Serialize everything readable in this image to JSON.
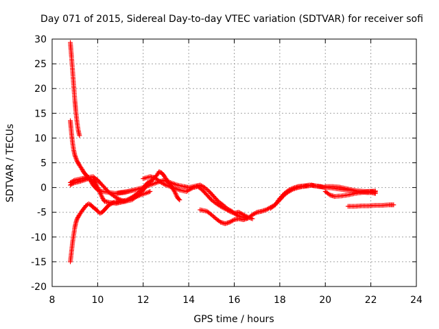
{
  "chart_data": {
    "type": "scatter",
    "title": "Day 071 of 2015, Sidereal Day-to-day VTEC variation (SDTVAR) for receiver sofi",
    "xlabel": "GPS time / hours",
    "ylabel": "SDTVAR / TECUs",
    "xlim": [
      8,
      24
    ],
    "ylim": [
      -20,
      30
    ],
    "xticks": [
      8,
      10,
      12,
      14,
      16,
      18,
      20,
      22,
      24
    ],
    "yticks": [
      -20,
      -15,
      -10,
      -5,
      0,
      5,
      10,
      15,
      20,
      25,
      30
    ],
    "xtick_labels": [
      "8",
      "10",
      "12",
      "14",
      "16",
      "18",
      "20",
      "22",
      "24"
    ],
    "ytick_labels": [
      "-20",
      "-15",
      "-10",
      "-5",
      "0",
      "5",
      "10",
      "15",
      "20",
      "25",
      "30"
    ],
    "grid": true,
    "marker": "+",
    "color": "#ff0000",
    "series": [
      {
        "name": "arc-high-start",
        "points": [
          [
            8.8,
            29.3
          ],
          [
            8.85,
            26.5
          ],
          [
            8.9,
            23.5
          ],
          [
            8.95,
            20.5
          ],
          [
            9.0,
            17.5
          ],
          [
            9.05,
            15.0
          ],
          [
            9.1,
            13.0
          ],
          [
            9.15,
            11.5
          ],
          [
            9.2,
            10.5
          ]
        ]
      },
      {
        "name": "arc-decay-to-zero",
        "points": [
          [
            8.8,
            13.5
          ],
          [
            8.85,
            11
          ],
          [
            8.9,
            9
          ],
          [
            8.95,
            7.5
          ],
          [
            9.0,
            6.5
          ],
          [
            9.1,
            5.3
          ],
          [
            9.2,
            4.5
          ],
          [
            9.3,
            3.8
          ],
          [
            9.4,
            3.0
          ],
          [
            9.5,
            2.5
          ],
          [
            9.6,
            2.0
          ],
          [
            9.7,
            1.3
          ],
          [
            9.8,
            0.5
          ],
          [
            9.9,
            0.0
          ],
          [
            10.0,
            -0.5
          ],
          [
            10.2,
            -0.8
          ],
          [
            10.5,
            -1.0
          ],
          [
            10.8,
            -1.2
          ],
          [
            11.0,
            -1.0
          ],
          [
            11.3,
            -0.8
          ],
          [
            11.6,
            -0.5
          ]
        ]
      },
      {
        "name": "arc-rising-from-minus15",
        "points": [
          [
            8.8,
            -15
          ],
          [
            8.85,
            -13
          ],
          [
            8.9,
            -11
          ],
          [
            8.95,
            -9.5
          ],
          [
            9.0,
            -8
          ],
          [
            9.05,
            -7
          ],
          [
            9.1,
            -6.3
          ],
          [
            9.2,
            -5.5
          ],
          [
            9.3,
            -4.8
          ],
          [
            9.4,
            -4.2
          ],
          [
            9.5,
            -3.6
          ],
          [
            9.6,
            -3.3
          ],
          [
            9.7,
            -3.5
          ],
          [
            9.8,
            -4.0
          ],
          [
            9.9,
            -4.3
          ],
          [
            10.0,
            -4.8
          ],
          [
            10.1,
            -5.2
          ],
          [
            10.2,
            -5.0
          ],
          [
            10.3,
            -4.5
          ],
          [
            10.4,
            -4.0
          ],
          [
            10.5,
            -3.5
          ],
          [
            10.7,
            -3.0
          ],
          [
            11.0,
            -2.8
          ],
          [
            11.3,
            -2.5
          ],
          [
            11.6,
            -2.0
          ],
          [
            11.9,
            -1.5
          ],
          [
            12.2,
            -1.0
          ],
          [
            12.3,
            -0.8
          ]
        ]
      },
      {
        "name": "arc-near-zero-low",
        "points": [
          [
            8.8,
            0.5
          ],
          [
            8.9,
            0.8
          ],
          [
            9.0,
            1.0
          ],
          [
            9.2,
            1.2
          ],
          [
            9.4,
            1.5
          ],
          [
            9.6,
            1.8
          ],
          [
            9.8,
            1.5
          ],
          [
            9.9,
            1.0
          ],
          [
            10.0,
            0.0
          ],
          [
            10.1,
            -1.0
          ],
          [
            10.2,
            -2.0
          ],
          [
            10.3,
            -2.8
          ],
          [
            10.5,
            -3.0
          ],
          [
            10.8,
            -3.2
          ],
          [
            11.0,
            -3.0
          ],
          [
            11.2,
            -2.8
          ],
          [
            11.5,
            -2.0
          ],
          [
            11.8,
            -1.0
          ],
          [
            12.0,
            0.0
          ],
          [
            12.2,
            1.0
          ],
          [
            12.4,
            1.5
          ]
        ]
      },
      {
        "name": "arc-mid-morning",
        "points": [
          [
            8.8,
            1.0
          ],
          [
            9.0,
            1.5
          ],
          [
            9.3,
            1.8
          ],
          [
            9.5,
            2.0
          ],
          [
            9.8,
            2.2
          ],
          [
            10.0,
            1.5
          ],
          [
            10.2,
            0.5
          ],
          [
            10.5,
            -1.0
          ],
          [
            10.8,
            -2.0
          ],
          [
            11.0,
            -2.5
          ],
          [
            11.2,
            -2.8
          ],
          [
            11.5,
            -2.5
          ],
          [
            11.8,
            -1.5
          ],
          [
            12.0,
            -0.5
          ],
          [
            12.2,
            0.5
          ],
          [
            12.4,
            1.5
          ],
          [
            12.6,
            2.5
          ],
          [
            12.7,
            3.2
          ],
          [
            12.8,
            3.0
          ],
          [
            12.9,
            2.5
          ],
          [
            13.0,
            1.8
          ],
          [
            13.2,
            0.5
          ],
          [
            13.4,
            -1.0
          ],
          [
            13.5,
            -2.0
          ],
          [
            13.6,
            -2.5
          ]
        ]
      },
      {
        "name": "arc-late-morning",
        "points": [
          [
            10.8,
            -1.2
          ],
          [
            11.2,
            -1.0
          ],
          [
            11.6,
            -0.5
          ],
          [
            12.0,
            0.0
          ],
          [
            12.3,
            0.5
          ],
          [
            12.6,
            1.0
          ],
          [
            12.9,
            1.5
          ],
          [
            13.2,
            1.0
          ],
          [
            13.5,
            0.5
          ],
          [
            13.8,
            0.2
          ],
          [
            14.0,
            0.0
          ],
          [
            14.3,
            0.3
          ],
          [
            14.5,
            0.5
          ],
          [
            14.7,
            0.0
          ],
          [
            14.9,
            -0.8
          ],
          [
            15.1,
            -1.8
          ],
          [
            15.3,
            -2.8
          ],
          [
            15.5,
            -3.5
          ],
          [
            15.7,
            -4.3
          ],
          [
            15.9,
            -4.8
          ],
          [
            16.0,
            -5.2
          ],
          [
            16.2,
            -5.0
          ],
          [
            16.4,
            -5.5
          ],
          [
            16.6,
            -6.0
          ],
          [
            16.8,
            -6.3
          ]
        ]
      },
      {
        "name": "arc-noon",
        "points": [
          [
            12.0,
            1.8
          ],
          [
            12.3,
            2.2
          ],
          [
            12.5,
            2.0
          ],
          [
            12.8,
            1.0
          ],
          [
            13.0,
            0.5
          ],
          [
            13.3,
            0.0
          ],
          [
            13.6,
            -0.5
          ],
          [
            13.9,
            -0.8
          ],
          [
            14.0,
            -0.5
          ],
          [
            14.2,
            0.0
          ],
          [
            14.4,
            0.2
          ],
          [
            14.6,
            -0.5
          ],
          [
            14.8,
            -1.5
          ],
          [
            15.0,
            -2.5
          ],
          [
            15.2,
            -3.2
          ],
          [
            15.4,
            -3.8
          ],
          [
            15.6,
            -4.3
          ],
          [
            15.8,
            -4.8
          ],
          [
            16.0,
            -5.2
          ],
          [
            16.2,
            -5.8
          ],
          [
            16.4,
            -6.0
          ],
          [
            16.6,
            -6.2
          ]
        ]
      },
      {
        "name": "arc-afternoon-dip",
        "points": [
          [
            14.5,
            -4.5
          ],
          [
            14.8,
            -4.8
          ],
          [
            15.0,
            -5.5
          ],
          [
            15.2,
            -6.3
          ],
          [
            15.4,
            -7.0
          ],
          [
            15.6,
            -7.3
          ],
          [
            15.8,
            -7.0
          ],
          [
            16.0,
            -6.5
          ],
          [
            16.2,
            -6.3
          ],
          [
            16.4,
            -6.5
          ],
          [
            16.6,
            -6.2
          ],
          [
            16.8,
            -5.5
          ],
          [
            17.0,
            -5.0
          ],
          [
            17.2,
            -4.8
          ],
          [
            17.4,
            -4.5
          ],
          [
            17.6,
            -4.0
          ],
          [
            17.8,
            -3.5
          ],
          [
            18.0,
            -2.5
          ],
          [
            18.2,
            -1.5
          ],
          [
            18.4,
            -0.8
          ],
          [
            18.6,
            -0.3
          ],
          [
            18.8,
            0.0
          ],
          [
            19.0,
            0.2
          ],
          [
            19.2,
            0.3
          ],
          [
            19.4,
            0.5
          ],
          [
            19.6,
            0.3
          ],
          [
            19.8,
            0.2
          ],
          [
            20.0,
            0.0
          ]
        ]
      },
      {
        "name": "arc-evening-1",
        "points": [
          [
            17.6,
            -4.2
          ],
          [
            17.8,
            -3.5
          ],
          [
            18.0,
            -2.2
          ],
          [
            18.2,
            -1.2
          ],
          [
            18.4,
            -0.5
          ],
          [
            18.6,
            -0.1
          ],
          [
            18.8,
            0.2
          ],
          [
            19.0,
            0.3
          ],
          [
            19.3,
            0.5
          ],
          [
            19.6,
            0.3
          ],
          [
            20.0,
            0.0
          ],
          [
            20.3,
            -0.1
          ],
          [
            20.6,
            -0.3
          ],
          [
            20.9,
            -0.5
          ],
          [
            21.2,
            -0.6
          ],
          [
            21.5,
            -0.7
          ],
          [
            21.8,
            -0.8
          ],
          [
            22.0,
            -0.8
          ],
          [
            22.2,
            -0.9
          ]
        ]
      },
      {
        "name": "arc-evening-2",
        "points": [
          [
            20.0,
            0.2
          ],
          [
            20.3,
            0.2
          ],
          [
            20.6,
            0.1
          ],
          [
            20.9,
            -0.2
          ],
          [
            21.2,
            -0.5
          ],
          [
            21.5,
            -0.8
          ],
          [
            21.8,
            -1.0
          ],
          [
            22.0,
            -1.0
          ],
          [
            22.2,
            -1.2
          ]
        ]
      },
      {
        "name": "arc-evening-3",
        "points": [
          [
            20.0,
            -0.8
          ],
          [
            20.2,
            -1.5
          ],
          [
            20.4,
            -1.8
          ],
          [
            20.7,
            -1.7
          ],
          [
            21.0,
            -1.5
          ],
          [
            21.3,
            -1.2
          ],
          [
            21.6,
            -1.0
          ],
          [
            21.9,
            -0.8
          ],
          [
            22.2,
            -0.7
          ]
        ]
      },
      {
        "name": "arc-late",
        "points": [
          [
            21.0,
            -3.8
          ],
          [
            21.3,
            -3.8
          ],
          [
            21.6,
            -3.7
          ],
          [
            21.9,
            -3.7
          ],
          [
            22.2,
            -3.6
          ],
          [
            22.5,
            -3.6
          ],
          [
            22.8,
            -3.5
          ],
          [
            23.0,
            -3.5
          ]
        ]
      }
    ]
  }
}
